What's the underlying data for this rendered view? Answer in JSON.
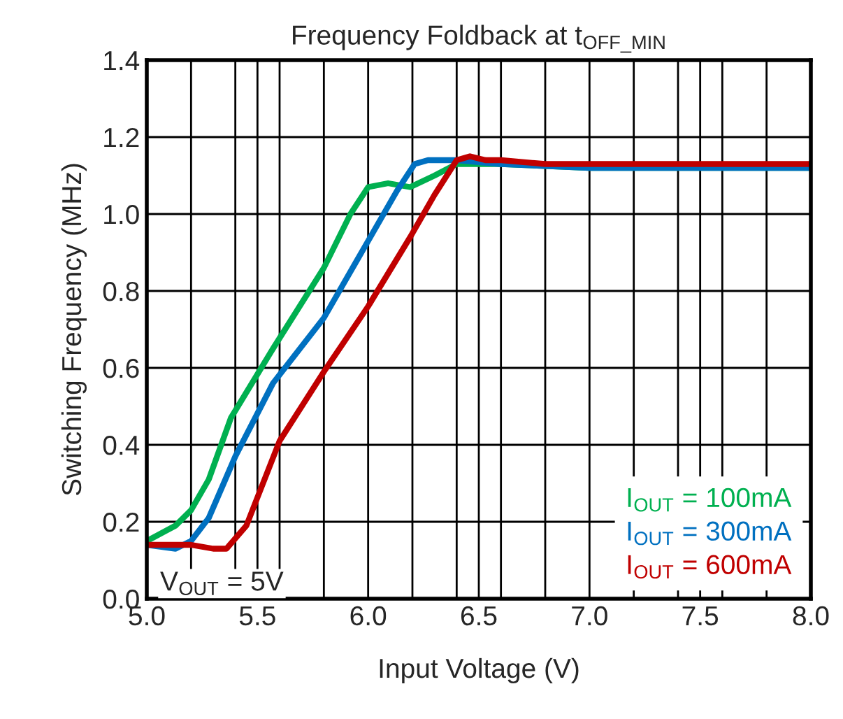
{
  "chart_data": {
    "type": "line",
    "title": "Frequency Foldback at t$_{OFF_MIN}$",
    "xlabel": "Input Voltage (V)",
    "ylabel": "Switching Frequency (MHz)",
    "series": [
      {
        "name": "I$_{OUT}$ = 100mA",
        "color": "#00b050",
        "x": [
          5.0,
          5.13,
          5.2,
          5.28,
          5.38,
          5.57,
          5.8,
          5.92,
          6.0,
          6.09,
          6.19,
          6.3,
          6.4,
          6.6,
          7.0,
          8.0
        ],
        "values": [
          0.15,
          0.19,
          0.23,
          0.31,
          0.47,
          0.65,
          0.86,
          1.0,
          1.07,
          1.08,
          1.07,
          1.1,
          1.13,
          1.13,
          1.12,
          1.12
        ]
      },
      {
        "name": "I$_{OUT}$ = 300mA",
        "color": "#0070c0",
        "x": [
          5.0,
          5.13,
          5.2,
          5.28,
          5.4,
          5.57,
          5.8,
          6.02,
          6.13,
          6.21,
          6.27,
          6.4,
          6.6,
          7.0,
          8.0
        ],
        "values": [
          0.14,
          0.13,
          0.15,
          0.21,
          0.37,
          0.56,
          0.73,
          0.95,
          1.06,
          1.13,
          1.14,
          1.14,
          1.13,
          1.12,
          1.12
        ]
      },
      {
        "name": "I$_{OUT}$ = 600mA",
        "color": "#c00000",
        "x": [
          5.0,
          5.2,
          5.3,
          5.36,
          5.45,
          5.6,
          5.8,
          6.0,
          6.19,
          6.3,
          6.4,
          6.46,
          6.53,
          6.6,
          6.8,
          8.0
        ],
        "values": [
          0.14,
          0.14,
          0.13,
          0.13,
          0.19,
          0.41,
          0.59,
          0.76,
          0.94,
          1.05,
          1.14,
          1.15,
          1.14,
          1.14,
          1.13,
          1.13
        ]
      }
    ],
    "xlim": [
      5.0,
      8.0
    ],
    "ylim": [
      0.0,
      1.4
    ],
    "xticks": [
      {
        "value": 5,
        "label": "5.0"
      },
      {
        "value": 5.2,
        "label": null
      },
      {
        "value": 5.4,
        "label": null
      },
      5.5,
      {
        "value": 5.6,
        "label": null
      },
      {
        "value": 5.8,
        "label": null
      },
      {
        "value": 6,
        "label": "6.0"
      },
      {
        "value": 6.2,
        "label": null
      },
      {
        "value": 6.4,
        "label": null
      },
      6.5,
      {
        "value": 6.6,
        "label": null
      },
      {
        "value": 6.8,
        "label": null
      },
      {
        "value": 7,
        "label": "7.0"
      },
      {
        "value": 7.2,
        "label": null
      },
      {
        "value": 7.4,
        "label": null
      },
      7.5,
      {
        "value": 7.6,
        "label": null
      },
      {
        "value": 7.8,
        "label": null
      },
      {
        "value": 8,
        "label": "8.0"
      }
    ],
    "yticks": [
      {
        "value": 0,
        "label": "0.0"
      },
      0.2,
      0.4,
      0.6,
      0.8,
      {
        "value": 1,
        "label": "1.0"
      },
      1.2,
      1.4
    ],
    "grid": true,
    "legend": "bottom right",
    "marker": "none",
    "line_style": "solid",
    "annotations": [
      "V$_{OUT}$ = 5V"
    ]
  }
}
